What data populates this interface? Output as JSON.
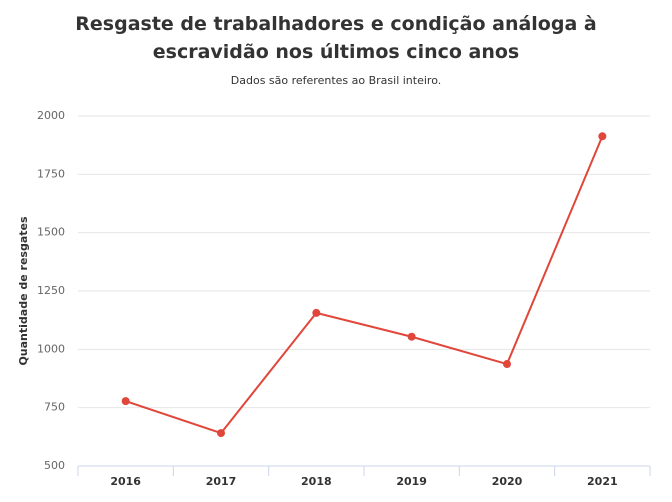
{
  "chart_data": {
    "type": "line",
    "title": "Resgaste de trabalhadores e condição análoga à escravidão nos últimos cinco anos",
    "subtitle": "Dados são referentes ao Brasil inteiro.",
    "y_label": "Quantidade de resgates",
    "categories": [
      "2016",
      "2017",
      "2018",
      "2019",
      "2020",
      "2021"
    ],
    "values": [
      778,
      641,
      1156,
      1054,
      937,
      1913
    ],
    "color": "#e0463a",
    "ylim": [
      500,
      2000
    ],
    "yticks": [
      500,
      750,
      1000,
      1250,
      1500,
      1750,
      2000
    ],
    "grid": true
  }
}
